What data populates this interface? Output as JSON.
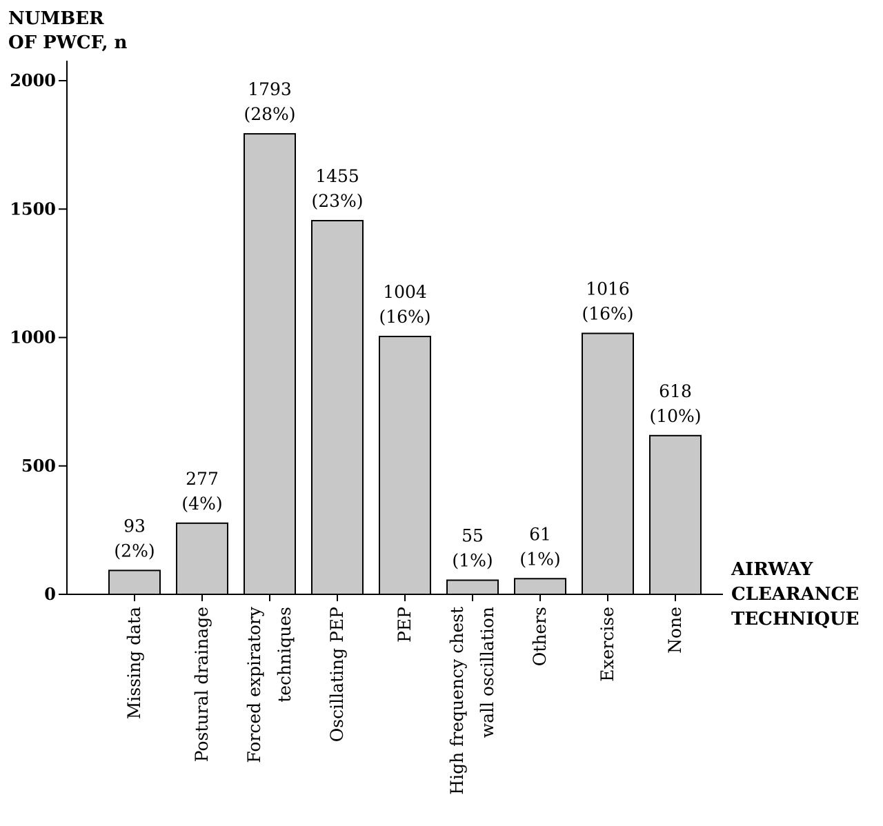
{
  "chart_data": {
    "type": "bar",
    "ylabel": [
      "NUMBER",
      "OF PWCF, n"
    ],
    "xlabel": [
      "AIRWAY",
      "CLEARANCE",
      "TECHNIQUE"
    ],
    "ylim": [
      0,
      2000
    ],
    "yticks": [
      0,
      500,
      1000,
      1500,
      2000
    ],
    "grid": false,
    "categories": [
      [
        "Missing data"
      ],
      [
        "Postural drainage"
      ],
      [
        "Forced expiratory",
        "techniques"
      ],
      [
        "Oscillating PEP"
      ],
      [
        "PEP"
      ],
      [
        "High frequency chest",
        "wall oscillation"
      ],
      [
        "Others"
      ],
      [
        "Exercise"
      ],
      [
        "None"
      ]
    ],
    "values": [
      93,
      277,
      1793,
      1455,
      1004,
      55,
      61,
      1016,
      618
    ],
    "percent_labels": [
      "(2%)",
      "(4%)",
      "(28%)",
      "(23%)",
      "(16%)",
      "(1%)",
      "(1%)",
      "(16%)",
      "(10%)"
    ]
  }
}
